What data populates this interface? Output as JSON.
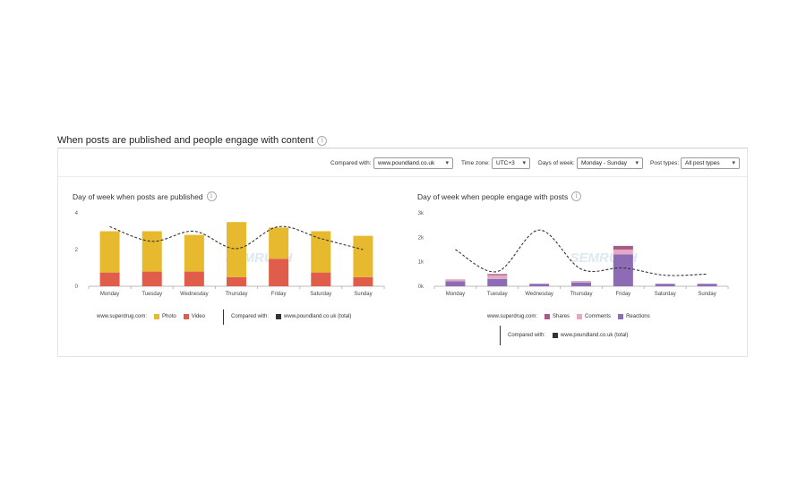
{
  "section": {
    "title": "When posts are published and people engage with content"
  },
  "toolbar": {
    "compared_with_label": "Compared with:",
    "compared_with_value": "www.poundland.co.uk",
    "time_zone_label": "Time zone:",
    "time_zone_value": "UTC+3",
    "days_label": "Days of week:",
    "days_value": "Monday - Sunday",
    "post_types_label": "Post types:",
    "post_types_value": "All post types"
  },
  "watermark": "SEMRUSH",
  "chart_data": [
    {
      "type": "bar",
      "title": "Day of week when posts are published",
      "categories": [
        "Monday",
        "Tuesday",
        "Wednesday",
        "Thursday",
        "Friday",
        "Saturday",
        "Sunday"
      ],
      "yticks": [
        "0",
        "2",
        "4"
      ],
      "ylim": [
        0,
        4
      ],
      "series": [
        {
          "name": "Video",
          "color": "#e05c4b",
          "values": [
            0.75,
            0.8,
            0.8,
            0.5,
            1.5,
            0.75,
            0.5
          ]
        },
        {
          "name": "Photo",
          "color": "#e6b92e",
          "values": [
            2.25,
            2.2,
            2.0,
            3.0,
            1.7,
            2.25,
            2.25
          ]
        }
      ],
      "comparison": {
        "name": "www.poundland.co.uk (total)",
        "color": "#333333",
        "values": [
          3.25,
          2.45,
          3.0,
          2.05,
          3.25,
          2.6,
          2.0
        ]
      },
      "legend": {
        "site_label": "www.superdrug.com:",
        "compared_label": "Compared with:",
        "items": [
          "Photo",
          "Video"
        ],
        "compared_item": "www.poundland.co.uk (total)"
      }
    },
    {
      "type": "bar",
      "title": "Day of week when people engage with posts",
      "categories": [
        "Monday",
        "Tuesday",
        "Wednesday",
        "Thursday",
        "Friday",
        "Saturday",
        "Sunday"
      ],
      "yticks": [
        "0k",
        "1k",
        "2k",
        "3k"
      ],
      "ylim": [
        0,
        3000
      ],
      "series": [
        {
          "name": "Reactions",
          "color": "#8e6bb5",
          "values": [
            200,
            300,
            100,
            150,
            1300,
            100,
            100
          ]
        },
        {
          "name": "Comments",
          "color": "#e4a9c4",
          "values": [
            50,
            150,
            0,
            30,
            200,
            0,
            0
          ]
        },
        {
          "name": "Shares",
          "color": "#a95a85",
          "values": [
            20,
            50,
            0,
            20,
            150,
            0,
            0
          ]
        }
      ],
      "comparison": {
        "name": "www.poundland.co.uk (total)",
        "color": "#333333",
        "values": [
          1500,
          600,
          2300,
          700,
          750,
          450,
          500
        ]
      },
      "legend": {
        "site_label": "www.superdrug.com:",
        "compared_label": "Compared with:",
        "items": [
          "Shares",
          "Comments",
          "Reactions"
        ],
        "compared_item": "www.poundland.co.uk (total)"
      }
    }
  ]
}
